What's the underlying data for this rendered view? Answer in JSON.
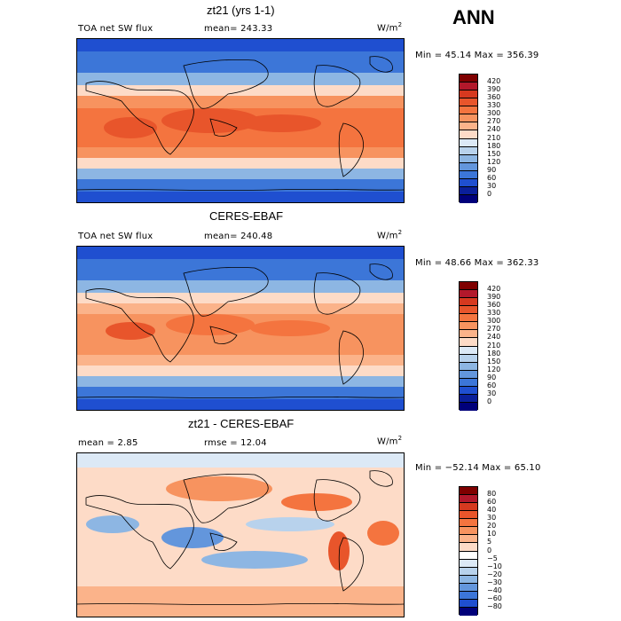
{
  "season": "ANN",
  "units": "W/m",
  "units_sup": "2",
  "panels": [
    {
      "title": "zt21 (yrs 1-1)",
      "left_label": "TOA net SW flux",
      "stat_label": "mean= 243.33",
      "minmax": "Min =  45.14 Max = 356.39",
      "colorbar": [
        "420",
        "390",
        "360",
        "330",
        "300",
        "270",
        "240",
        "210",
        "180",
        "150",
        "120",
        "90",
        "60",
        "30",
        "0"
      ]
    },
    {
      "title": "CERES-EBAF",
      "left_label": "TOA net SW flux",
      "stat_label": "mean= 240.48",
      "minmax": "Min =  48.66 Max = 362.33",
      "colorbar": [
        "420",
        "390",
        "360",
        "330",
        "300",
        "270",
        "240",
        "210",
        "180",
        "150",
        "120",
        "90",
        "60",
        "30",
        "0"
      ]
    },
    {
      "title": "zt21 - CERES-EBAF",
      "left_label": "mean =    2.85",
      "stat_label": "rmse =   12.04",
      "minmax": "Min = −52.14 Max =   65.10",
      "colorbar": [
        "80",
        "60",
        "40",
        "30",
        "20",
        "10",
        "5",
        "0",
        "−5",
        "−10",
        "−20",
        "−30",
        "−40",
        "−60",
        "−80"
      ]
    }
  ],
  "colors": {
    "flux_scale": [
      "#7f0000",
      "#b2182b",
      "#d6391f",
      "#e8552b",
      "#f4743f",
      "#f7935f",
      "#fbb38a",
      "#fddbc7",
      "#dce9f6",
      "#b8d2ec",
      "#8db6e3",
      "#6396dc",
      "#3c76d8",
      "#1f4fd0",
      "#0a1f9a",
      "#00007a"
    ],
    "diff_scale": [
      "#7f0000",
      "#b2182b",
      "#d6391f",
      "#e8552b",
      "#f4743f",
      "#f7935f",
      "#fbb38a",
      "#fddbc7",
      "#ffffff",
      "#dce9f6",
      "#b8d2ec",
      "#8db6e3",
      "#6396dc",
      "#3c76d8",
      "#1f4fd0",
      "#00007a"
    ]
  }
}
